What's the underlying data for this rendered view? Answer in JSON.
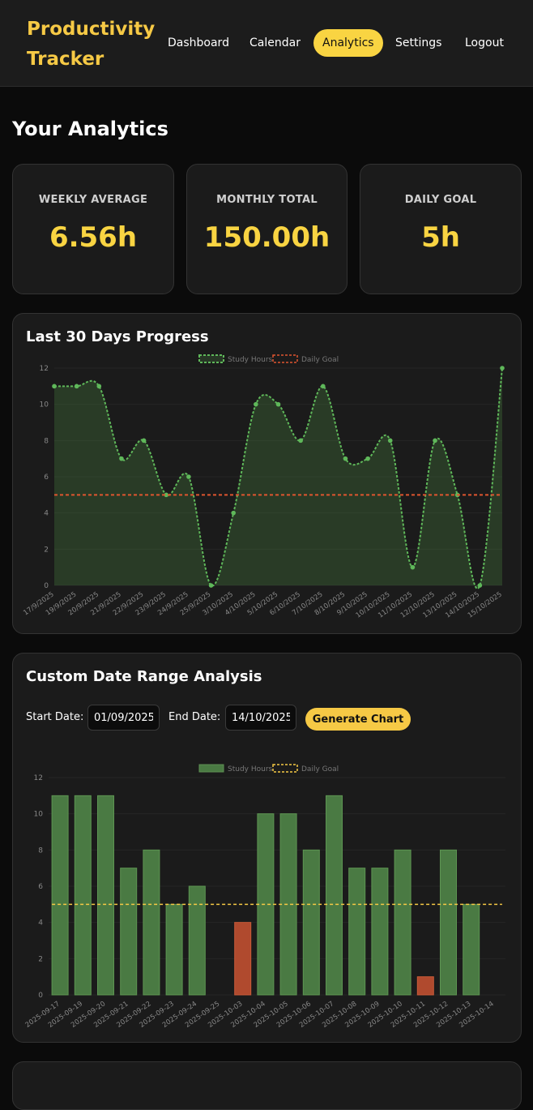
{
  "app": {
    "title": "Productivity Tracker"
  },
  "nav": {
    "items": [
      {
        "label": "Dashboard"
      },
      {
        "label": "Calendar"
      },
      {
        "label": "Analytics",
        "active": true
      },
      {
        "label": "Settings"
      },
      {
        "label": "Logout"
      }
    ]
  },
  "page": {
    "title": "Your Analytics"
  },
  "stats": [
    {
      "label": "WEEKLY AVERAGE",
      "value": "6.56h"
    },
    {
      "label": "MONTHLY TOTAL",
      "value": "150.00h"
    },
    {
      "label": "DAILY GOAL",
      "value": "5h"
    }
  ],
  "colors": {
    "accent": "#f9d442",
    "study_line": "#5fb85a",
    "goal_line_red": "#e0552f",
    "goal_line_yellow": "#f6c945",
    "bar_green": "#4a7a43",
    "bar_red": "#b04a2e"
  },
  "progress_section": {
    "title": "Last 30 Days Progress"
  },
  "custom_section": {
    "title": "Custom Date Range Analysis",
    "start_label": "Start Date:",
    "start_value": "01/09/2025",
    "end_label": "End Date:",
    "end_value": "14/10/2025",
    "button_label": "Generate Chart"
  },
  "chart_data": [
    {
      "type": "line",
      "title": "Last 30 Days Progress",
      "legend": [
        "Study Hours",
        "Daily Goal"
      ],
      "categories": [
        "17/9/2025",
        "19/9/2025",
        "20/9/2025",
        "21/9/2025",
        "22/9/2025",
        "23/9/2025",
        "24/9/2025",
        "25/9/2025",
        "3/10/2025",
        "4/10/2025",
        "5/10/2025",
        "6/10/2025",
        "7/10/2025",
        "8/10/2025",
        "9/10/2025",
        "10/10/2025",
        "11/10/2025",
        "12/10/2025",
        "13/10/2025",
        "14/10/2025",
        "15/10/2025"
      ],
      "series": [
        {
          "name": "Study Hours",
          "values": [
            11,
            11,
            11,
            7,
            8,
            5,
            6,
            0,
            4,
            10,
            10,
            8,
            11,
            7,
            7,
            8,
            1,
            8,
            5,
            0,
            12
          ]
        },
        {
          "name": "Daily Goal",
          "values": [
            5,
            5,
            5,
            5,
            5,
            5,
            5,
            5,
            5,
            5,
            5,
            5,
            5,
            5,
            5,
            5,
            5,
            5,
            5,
            5,
            5
          ]
        }
      ],
      "ylim": [
        0,
        12
      ],
      "yticks": [
        0,
        2,
        4,
        6,
        8,
        10,
        12
      ]
    },
    {
      "type": "bar",
      "title": "Custom Date Range Analysis",
      "legend": [
        "Study Hours",
        "Daily Goal"
      ],
      "categories": [
        "2025-09-17",
        "2025-09-19",
        "2025-09-20",
        "2025-09-21",
        "2025-09-22",
        "2025-09-23",
        "2025-09-24",
        "2025-09-25",
        "2025-10-03",
        "2025-10-04",
        "2025-10-05",
        "2025-10-06",
        "2025-10-07",
        "2025-10-08",
        "2025-10-09",
        "2025-10-10",
        "2025-10-11",
        "2025-10-12",
        "2025-10-13",
        "2025-10-14"
      ],
      "series": [
        {
          "name": "Study Hours",
          "values": [
            11,
            11,
            11,
            7,
            8,
            5,
            6,
            0,
            4,
            10,
            10,
            8,
            11,
            7,
            7,
            8,
            1,
            8,
            5,
            0
          ]
        },
        {
          "name": "Daily Goal",
          "values": [
            5,
            5,
            5,
            5,
            5,
            5,
            5,
            5,
            5,
            5,
            5,
            5,
            5,
            5,
            5,
            5,
            5,
            5,
            5,
            5
          ]
        }
      ],
      "ylim": [
        0,
        12
      ],
      "yticks": [
        0,
        2,
        4,
        6,
        8,
        10,
        12
      ]
    }
  ]
}
